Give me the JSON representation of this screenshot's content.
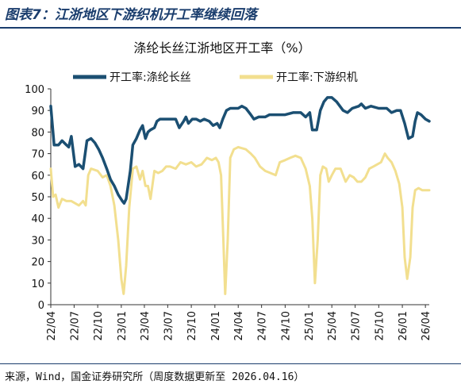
{
  "figure": {
    "title": "图表7：江浙地区下游织机开工率继续回落",
    "source": "来源，Wind，国金证券研究所（周度数据更新至 2026.04.16）"
  },
  "colors": {
    "series1": "#1b4f72",
    "series2": "#f2df8f",
    "rule": "#1a3d6d"
  },
  "chart_data": {
    "type": "line",
    "title": "涤纶长丝江浙地区开工率（%）",
    "xlabel": "",
    "ylabel": "",
    "ylim": [
      0,
      100
    ],
    "yticks": [
      0,
      10,
      20,
      30,
      40,
      50,
      60,
      70,
      80,
      90,
      100
    ],
    "xlim": [
      "2022-04",
      "2026-04"
    ],
    "xticks": [
      "22/04",
      "22/07",
      "22/10",
      "23/01",
      "23/04",
      "23/07",
      "23/10",
      "24/01",
      "24/04",
      "24/07",
      "24/10",
      "25/01",
      "25/04",
      "25/07",
      "25/10",
      "26/01",
      "26/04"
    ],
    "grid": false,
    "legend": "top",
    "series": [
      {
        "name": "开工率:涤纶长丝",
        "points": [
          [
            "2022-04-01",
            92
          ],
          [
            "2022-04-14",
            74
          ],
          [
            "2022-05-01",
            74
          ],
          [
            "2022-05-15",
            76
          ],
          [
            "2022-06-01",
            74
          ],
          [
            "2022-06-10",
            73
          ],
          [
            "2022-06-20",
            78
          ],
          [
            "2022-07-05",
            64
          ],
          [
            "2022-07-20",
            65
          ],
          [
            "2022-08-05",
            63
          ],
          [
            "2022-08-20",
            76
          ],
          [
            "2022-09-05",
            77
          ],
          [
            "2022-09-20",
            75
          ],
          [
            "2022-10-05",
            72
          ],
          [
            "2022-10-20",
            68
          ],
          [
            "2022-11-05",
            63
          ],
          [
            "2022-11-20",
            58
          ],
          [
            "2022-12-05",
            55
          ],
          [
            "2022-12-20",
            51
          ],
          [
            "2023-01-05",
            48
          ],
          [
            "2023-01-12",
            47
          ],
          [
            "2023-01-20",
            49
          ],
          [
            "2023-02-05",
            62
          ],
          [
            "2023-02-15",
            74
          ],
          [
            "2023-03-01",
            77
          ],
          [
            "2023-03-15",
            81
          ],
          [
            "2023-03-25",
            83
          ],
          [
            "2023-04-05",
            77
          ],
          [
            "2023-04-15",
            80
          ],
          [
            "2023-04-25",
            81
          ],
          [
            "2023-05-10",
            82
          ],
          [
            "2023-05-20",
            85
          ],
          [
            "2023-06-01",
            86
          ],
          [
            "2023-07-01",
            86
          ],
          [
            "2023-08-01",
            86
          ],
          [
            "2023-08-15",
            82
          ],
          [
            "2023-09-01",
            85
          ],
          [
            "2023-09-10",
            87
          ],
          [
            "2023-09-20",
            84
          ],
          [
            "2023-10-05",
            86
          ],
          [
            "2023-10-20",
            86
          ],
          [
            "2023-11-05",
            85
          ],
          [
            "2023-11-20",
            86
          ],
          [
            "2023-12-10",
            85
          ],
          [
            "2023-12-25",
            83
          ],
          [
            "2024-01-10",
            84
          ],
          [
            "2024-01-20",
            82
          ],
          [
            "2024-02-01",
            86
          ],
          [
            "2024-02-15",
            90
          ],
          [
            "2024-03-01",
            91
          ],
          [
            "2024-04-01",
            91
          ],
          [
            "2024-04-15",
            92
          ],
          [
            "2024-05-01",
            91
          ],
          [
            "2024-05-20",
            88
          ],
          [
            "2024-06-01",
            86
          ],
          [
            "2024-06-20",
            87
          ],
          [
            "2024-07-15",
            87
          ],
          [
            "2024-08-01",
            88
          ],
          [
            "2024-09-01",
            88
          ],
          [
            "2024-10-01",
            88
          ],
          [
            "2024-11-01",
            89
          ],
          [
            "2024-12-01",
            89
          ],
          [
            "2024-12-20",
            87
          ],
          [
            "2025-01-05",
            89
          ],
          [
            "2025-01-15",
            81
          ],
          [
            "2025-02-01",
            81
          ],
          [
            "2025-02-15",
            90
          ],
          [
            "2025-03-01",
            94
          ],
          [
            "2025-03-15",
            96
          ],
          [
            "2025-04-01",
            96
          ],
          [
            "2025-04-20",
            94
          ],
          [
            "2025-05-15",
            90
          ],
          [
            "2025-06-01",
            89
          ],
          [
            "2025-06-20",
            91
          ],
          [
            "2025-07-15",
            92
          ],
          [
            "2025-07-25",
            93
          ],
          [
            "2025-08-10",
            91
          ],
          [
            "2025-09-01",
            92
          ],
          [
            "2025-10-01",
            91
          ],
          [
            "2025-11-01",
            91
          ],
          [
            "2025-11-20",
            89
          ],
          [
            "2025-12-10",
            90
          ],
          [
            "2025-12-25",
            90
          ],
          [
            "2026-01-10",
            84
          ],
          [
            "2026-01-25",
            77
          ],
          [
            "2026-02-10",
            78
          ],
          [
            "2026-02-20",
            85
          ],
          [
            "2026-03-01",
            89
          ],
          [
            "2026-03-15",
            88
          ],
          [
            "2026-04-01",
            86
          ],
          [
            "2026-04-16",
            85
          ]
        ]
      },
      {
        "name": "开工率:下游织机",
        "points": [
          [
            "2022-04-01",
            63
          ],
          [
            "2022-04-10",
            50
          ],
          [
            "2022-04-20",
            51
          ],
          [
            "2022-05-01",
            45
          ],
          [
            "2022-05-15",
            49
          ],
          [
            "2022-06-01",
            48
          ],
          [
            "2022-06-20",
            48
          ],
          [
            "2022-07-05",
            47
          ],
          [
            "2022-07-20",
            46
          ],
          [
            "2022-08-05",
            48
          ],
          [
            "2022-08-15",
            46
          ],
          [
            "2022-08-25",
            60
          ],
          [
            "2022-09-05",
            63
          ],
          [
            "2022-10-01",
            62
          ],
          [
            "2022-10-20",
            59
          ],
          [
            "2022-11-05",
            60
          ],
          [
            "2022-11-20",
            55
          ],
          [
            "2022-12-05",
            46
          ],
          [
            "2022-12-20",
            30
          ],
          [
            "2023-01-01",
            12
          ],
          [
            "2023-01-10",
            5
          ],
          [
            "2023-01-20",
            18
          ],
          [
            "2023-02-01",
            45
          ],
          [
            "2023-02-15",
            63
          ],
          [
            "2023-03-01",
            64
          ],
          [
            "2023-03-15",
            58
          ],
          [
            "2023-03-25",
            62
          ],
          [
            "2023-04-05",
            55
          ],
          [
            "2023-04-15",
            55
          ],
          [
            "2023-04-25",
            49
          ],
          [
            "2023-05-10",
            62
          ],
          [
            "2023-05-25",
            61
          ],
          [
            "2023-06-10",
            62
          ],
          [
            "2023-06-25",
            64
          ],
          [
            "2023-07-10",
            64
          ],
          [
            "2023-08-01",
            63
          ],
          [
            "2023-08-20",
            66
          ],
          [
            "2023-09-10",
            65
          ],
          [
            "2023-10-01",
            66
          ],
          [
            "2023-10-20",
            64
          ],
          [
            "2023-11-10",
            65
          ],
          [
            "2023-12-01",
            68
          ],
          [
            "2023-12-20",
            67
          ],
          [
            "2024-01-05",
            68
          ],
          [
            "2024-01-15",
            66
          ],
          [
            "2024-01-25",
            60
          ],
          [
            "2024-02-03",
            30
          ],
          [
            "2024-02-10",
            5
          ],
          [
            "2024-02-20",
            30
          ],
          [
            "2024-03-01",
            68
          ],
          [
            "2024-03-15",
            72
          ],
          [
            "2024-04-01",
            73
          ],
          [
            "2024-05-01",
            72
          ],
          [
            "2024-05-20",
            70
          ],
          [
            "2024-06-05",
            68
          ],
          [
            "2024-06-25",
            64
          ],
          [
            "2024-07-15",
            62
          ],
          [
            "2024-08-05",
            61
          ],
          [
            "2024-08-25",
            60
          ],
          [
            "2024-09-10",
            66
          ],
          [
            "2024-10-01",
            67
          ],
          [
            "2024-10-20",
            68
          ],
          [
            "2024-11-10",
            69
          ],
          [
            "2024-12-01",
            68
          ],
          [
            "2024-12-20",
            63
          ],
          [
            "2025-01-05",
            55
          ],
          [
            "2025-01-15",
            40
          ],
          [
            "2025-01-25",
            10
          ],
          [
            "2025-02-05",
            30
          ],
          [
            "2025-02-15",
            60
          ],
          [
            "2025-02-25",
            64
          ],
          [
            "2025-03-10",
            63
          ],
          [
            "2025-03-20",
            57
          ],
          [
            "2025-04-01",
            60
          ],
          [
            "2025-04-15",
            63
          ],
          [
            "2025-05-05",
            63
          ],
          [
            "2025-05-25",
            57
          ],
          [
            "2025-06-10",
            60
          ],
          [
            "2025-06-25",
            59
          ],
          [
            "2025-07-10",
            57
          ],
          [
            "2025-07-25",
            57
          ],
          [
            "2025-08-10",
            59
          ],
          [
            "2025-08-25",
            63
          ],
          [
            "2025-09-10",
            64
          ],
          [
            "2025-09-25",
            65
          ],
          [
            "2025-10-10",
            66
          ],
          [
            "2025-10-25",
            70
          ],
          [
            "2025-11-05",
            68
          ],
          [
            "2025-11-20",
            66
          ],
          [
            "2025-12-05",
            62
          ],
          [
            "2025-12-20",
            56
          ],
          [
            "2026-01-01",
            45
          ],
          [
            "2026-01-10",
            22
          ],
          [
            "2026-01-20",
            12
          ],
          [
            "2026-02-01",
            22
          ],
          [
            "2026-02-10",
            45
          ],
          [
            "2026-02-20",
            53
          ],
          [
            "2026-03-05",
            54
          ],
          [
            "2026-03-20",
            53
          ],
          [
            "2026-04-01",
            53
          ],
          [
            "2026-04-16",
            53
          ]
        ]
      }
    ]
  }
}
